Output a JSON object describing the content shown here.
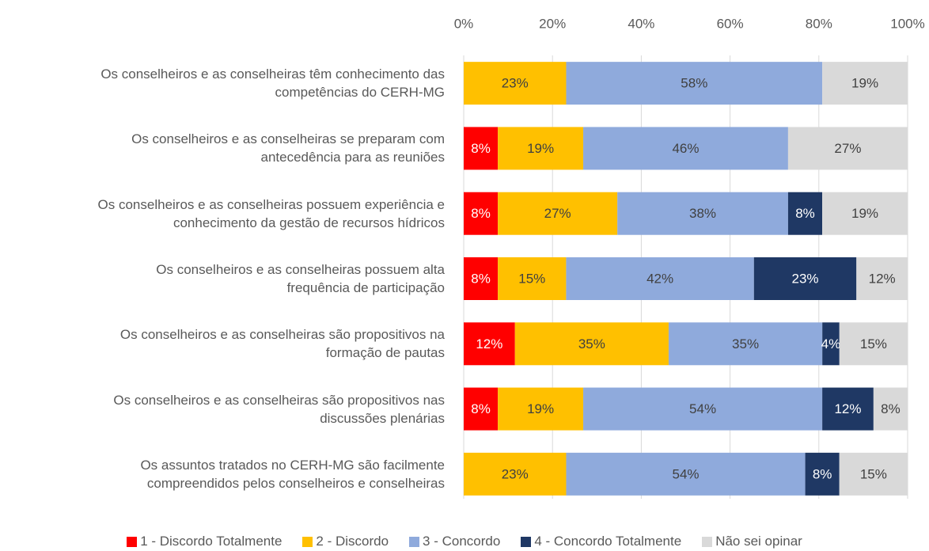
{
  "chart_data": {
    "type": "stacked-bar-horizontal",
    "categories": [
      "Os conselheiros e as conselheiras têm conhecimento das\ncompetências do CERH-MG",
      "Os conselheiros e as conselheiras se preparam com\nantecedência para as reuniões",
      "Os conselheiros e as conselheiras possuem experiência e\nconhecimento da gestão de recursos hídricos",
      "Os conselheiros e as conselheiras possuem alta\nfrequência de participação",
      "Os conselheiros e as conselheiras são propositivos na\nformação de pautas",
      "Os conselheiros e as conselheiras são propositivos nas\ndiscussões plenárias",
      "Os assuntos tratados no CERH-MG são facilmente\ncompreendidos pelos conselheiros e conselheiras"
    ],
    "series": [
      {
        "name": "1 - Discordo Totalmente",
        "color": "#ff0000",
        "label_color": "#ffffff",
        "values": [
          null,
          7.69,
          7.69,
          7.69,
          11.54,
          7.69,
          null
        ],
        "value_labels": [
          null,
          "8%",
          "8%",
          "8%",
          "12%",
          "8%",
          null
        ]
      },
      {
        "name": "2 - Discordo",
        "color": "#ffc000",
        "label_color": "#404040",
        "values": [
          23.08,
          19.23,
          26.92,
          15.38,
          34.62,
          19.23,
          23.08
        ],
        "value_labels": [
          "23%",
          "19%",
          "27%",
          "15%",
          "35%",
          "19%",
          "23%"
        ]
      },
      {
        "name": "3 - Concordo",
        "color": "#8faadc",
        "label_color": "#404040",
        "values": [
          57.69,
          46.15,
          38.46,
          42.31,
          34.62,
          53.85,
          53.85
        ],
        "value_labels": [
          "58%",
          "46%",
          "38%",
          "42%",
          "35%",
          "54%",
          "54%"
        ]
      },
      {
        "name": "4 - Concordo Totalmente",
        "color": "#1f3864",
        "label_color": "#ffffff",
        "values": [
          null,
          null,
          7.69,
          23.08,
          3.85,
          11.54,
          7.69
        ],
        "value_labels": [
          null,
          null,
          "8%",
          "23%",
          "4%",
          "12%",
          "8%"
        ]
      },
      {
        "name": "Não sei opinar",
        "color": "#d9d9d9",
        "label_color": "#404040",
        "values": [
          19.23,
          26.92,
          19.23,
          11.54,
          15.38,
          7.69,
          15.38
        ],
        "value_labels": [
          "19%",
          "27%",
          "19%",
          "12%",
          "15%",
          "8%",
          "15%"
        ]
      }
    ],
    "xlim": [
      0,
      100
    ],
    "xticks": [
      {
        "value": 0,
        "label": "0%"
      },
      {
        "value": 20,
        "label": "20%"
      },
      {
        "value": 40,
        "label": "40%"
      },
      {
        "value": 60,
        "label": "60%"
      },
      {
        "value": 80,
        "label": "80%"
      },
      {
        "value": 100,
        "label": "100%"
      }
    ],
    "grid": true,
    "legend": "bottom"
  }
}
